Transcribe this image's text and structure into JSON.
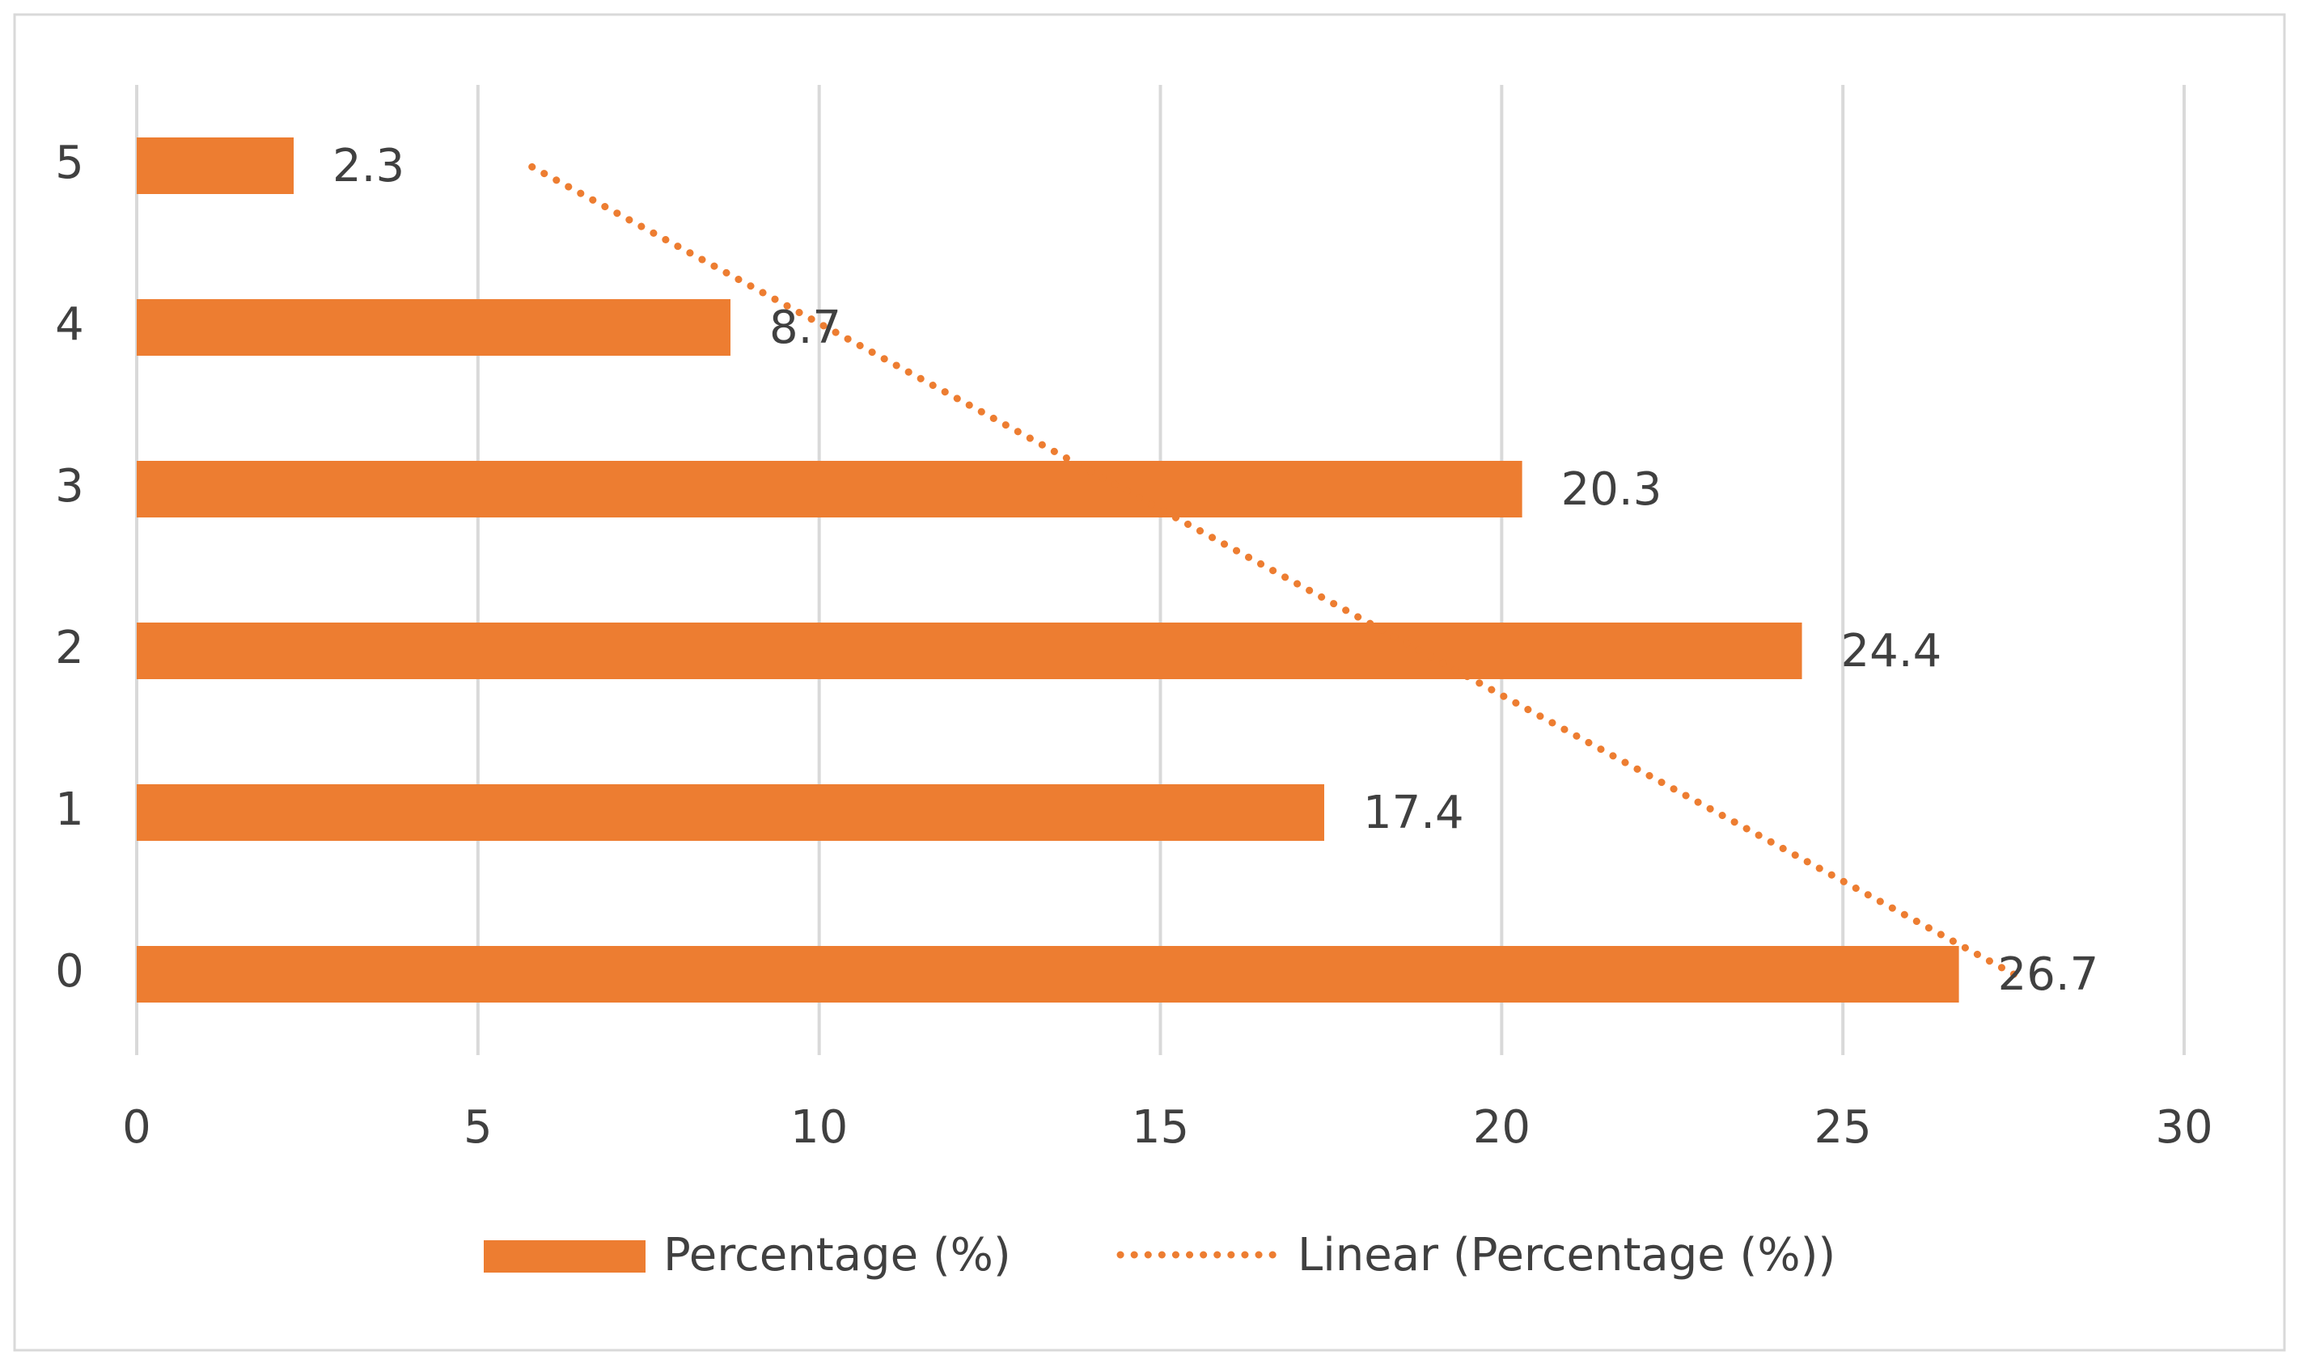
{
  "chart_data": {
    "type": "hbar",
    "categories": [
      "0",
      "1",
      "2",
      "3",
      "4",
      "5"
    ],
    "series": [
      {
        "name": "Percentage (%)",
        "color": "#ed7d31",
        "values": [
          26.7,
          17.4,
          24.4,
          20.3,
          8.7,
          2.3
        ]
      }
    ],
    "trendline": {
      "name": "Linear (Percentage (%))",
      "type": "linear",
      "color": "#ed7d31"
    },
    "xlim": [
      0,
      30
    ],
    "xticks": [
      0,
      5,
      10,
      15,
      20,
      25,
      30
    ],
    "grid": true,
    "legend": "bottom",
    "data_labels": true
  }
}
